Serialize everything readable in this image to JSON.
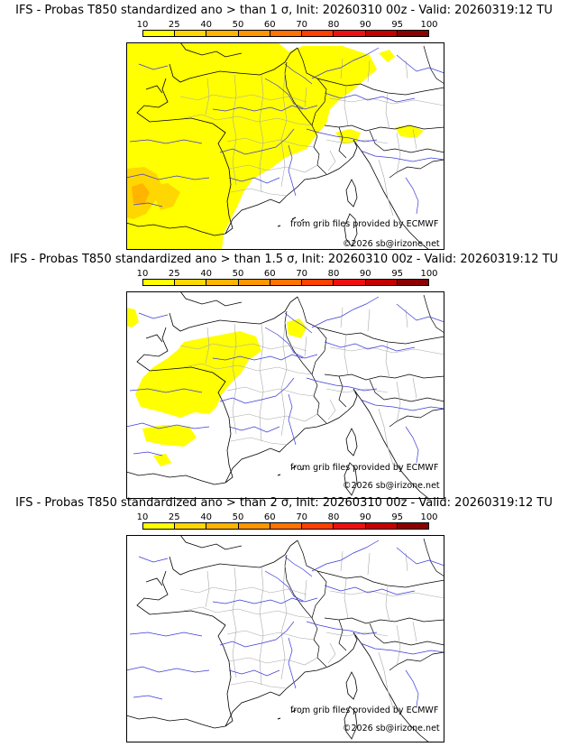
{
  "legend": {
    "ticks": [
      "10",
      "25",
      "40",
      "50",
      "60",
      "70",
      "80",
      "90",
      "95",
      "100"
    ],
    "colors": [
      "#ffff00",
      "#ffd700",
      "#ffb400",
      "#ff9600",
      "#ff7300",
      "#ff4000",
      "#ee1010",
      "#c40000",
      "#8b0000",
      "#4d0000"
    ]
  },
  "panels": [
    {
      "title": "IFS - Probas T850  standardized ano > than 1 σ, Init: 20260310 00z - Valid: 20260319:12 TU",
      "source": "from grib files provided by ECMWF",
      "copyright": "©2026 sb@irizone.net"
    },
    {
      "title": "IFS - Probas T850  standardized ano > than 1.5 σ, Init: 20260310 00z - Valid: 20260319:12 TU",
      "source": "from grib files provided by ECMWF",
      "copyright": "©2026 sb@irizone.net"
    },
    {
      "title": "IFS - Probas T850  standardized ano > than 2 σ, Init: 20260310 00z - Valid: 20260319:12 TU",
      "source": "from grib files provided by ECMWF",
      "copyright": "©2026 sb@irizone.net"
    }
  ]
}
